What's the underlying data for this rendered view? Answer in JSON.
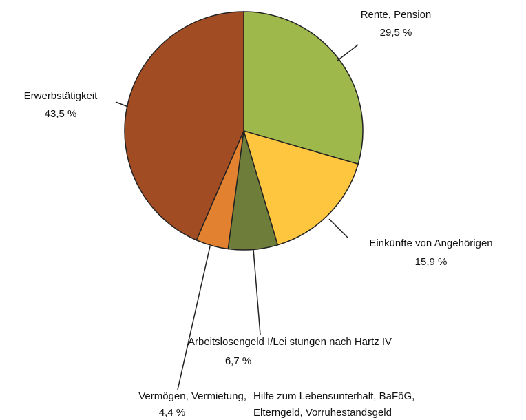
{
  "chart_data": {
    "type": "pie",
    "categories": [
      [
        "Rente, Pension"
      ],
      [
        "Einkünfte von Angehörigen"
      ],
      [
        "Arbeitslosengeld I/Lei stungen nach Hartz IV"
      ],
      [
        "Vermögen, Vermietung,",
        "Hilfe zum Lebensunterhalt, BaFöG,",
        "Elterngeld, Vorruhestandsgeld"
      ],
      [
        "Erwerbstätigkeit"
      ]
    ],
    "values": [
      29.5,
      15.9,
      6.7,
      4.4,
      43.5
    ],
    "value_labels": [
      "29,5 %",
      "15,9 %",
      "6,7 %",
      "4,4 %",
      "43,5 %"
    ],
    "colors": [
      "#9fb84b",
      "#fec63e",
      "#6e7e3a",
      "#e2812f",
      "#a24c24"
    ]
  }
}
